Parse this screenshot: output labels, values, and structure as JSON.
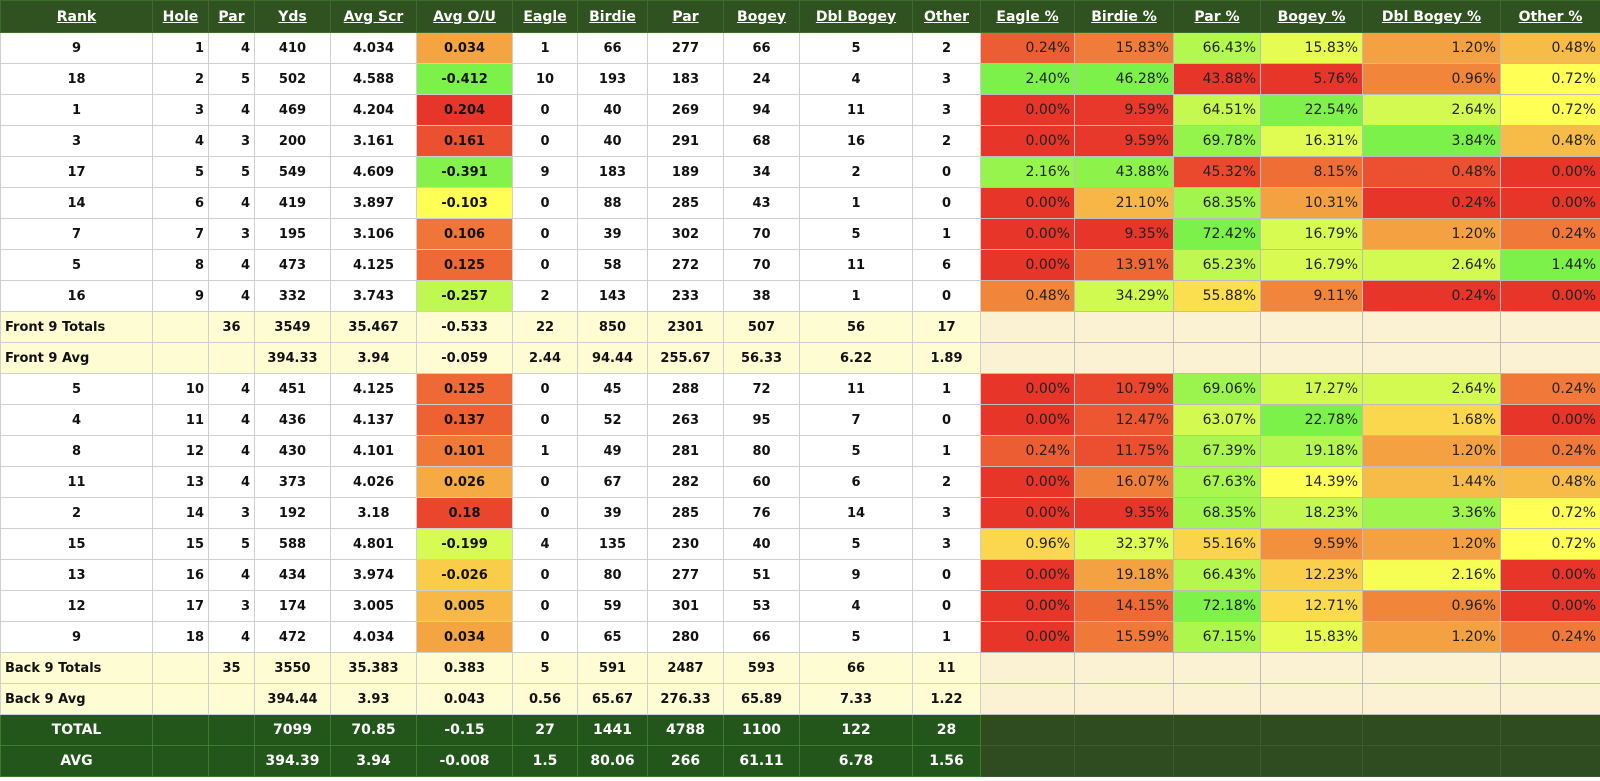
{
  "columns": [
    "Rank",
    "Hole",
    "Par",
    "Yds",
    "Avg Scr",
    "Avg O/U",
    "Eagle",
    "Birdie",
    "Par",
    "Bogey",
    "Dbl Bogey",
    "Other",
    "Eagle %",
    "Birdie %",
    "Par %",
    "Bogey %",
    "Dbl Bogey %",
    "Other %"
  ],
  "front_rows": [
    {
      "rank": "9",
      "hole": "1",
      "par": "4",
      "yds": "410",
      "avg": "4.034",
      "ou": "0.034",
      "eagle": "1",
      "birdie": "66",
      "parc": "277",
      "bogey": "66",
      "dbl": "5",
      "other": "2",
      "pcts": [
        "0.24%",
        "15.83%",
        "66.43%",
        "15.83%",
        "1.20%",
        "0.48%"
      ]
    },
    {
      "rank": "18",
      "hole": "2",
      "par": "5",
      "yds": "502",
      "avg": "4.588",
      "ou": "-0.412",
      "eagle": "10",
      "birdie": "193",
      "parc": "183",
      "bogey": "24",
      "dbl": "4",
      "other": "3",
      "pcts": [
        "2.40%",
        "46.28%",
        "43.88%",
        "5.76%",
        "0.96%",
        "0.72%"
      ]
    },
    {
      "rank": "1",
      "hole": "3",
      "par": "4",
      "yds": "469",
      "avg": "4.204",
      "ou": "0.204",
      "eagle": "0",
      "birdie": "40",
      "parc": "269",
      "bogey": "94",
      "dbl": "11",
      "other": "3",
      "pcts": [
        "0.00%",
        "9.59%",
        "64.51%",
        "22.54%",
        "2.64%",
        "0.72%"
      ]
    },
    {
      "rank": "3",
      "hole": "4",
      "par": "3",
      "yds": "200",
      "avg": "3.161",
      "ou": "0.161",
      "eagle": "0",
      "birdie": "40",
      "parc": "291",
      "bogey": "68",
      "dbl": "16",
      "other": "2",
      "pcts": [
        "0.00%",
        "9.59%",
        "69.78%",
        "16.31%",
        "3.84%",
        "0.48%"
      ]
    },
    {
      "rank": "17",
      "hole": "5",
      "par": "5",
      "yds": "549",
      "avg": "4.609",
      "ou": "-0.391",
      "eagle": "9",
      "birdie": "183",
      "parc": "189",
      "bogey": "34",
      "dbl": "2",
      "other": "0",
      "pcts": [
        "2.16%",
        "43.88%",
        "45.32%",
        "8.15%",
        "0.48%",
        "0.00%"
      ]
    },
    {
      "rank": "14",
      "hole": "6",
      "par": "4",
      "yds": "419",
      "avg": "3.897",
      "ou": "-0.103",
      "eagle": "0",
      "birdie": "88",
      "parc": "285",
      "bogey": "43",
      "dbl": "1",
      "other": "0",
      "pcts": [
        "0.00%",
        "21.10%",
        "68.35%",
        "10.31%",
        "0.24%",
        "0.00%"
      ]
    },
    {
      "rank": "7",
      "hole": "7",
      "par": "3",
      "yds": "195",
      "avg": "3.106",
      "ou": "0.106",
      "eagle": "0",
      "birdie": "39",
      "parc": "302",
      "bogey": "70",
      "dbl": "5",
      "other": "1",
      "pcts": [
        "0.00%",
        "9.35%",
        "72.42%",
        "16.79%",
        "1.20%",
        "0.24%"
      ]
    },
    {
      "rank": "5",
      "hole": "8",
      "par": "4",
      "yds": "473",
      "avg": "4.125",
      "ou": "0.125",
      "eagle": "0",
      "birdie": "58",
      "parc": "272",
      "bogey": "70",
      "dbl": "11",
      "other": "6",
      "pcts": [
        "0.00%",
        "13.91%",
        "65.23%",
        "16.79%",
        "2.64%",
        "1.44%"
      ]
    },
    {
      "rank": "16",
      "hole": "9",
      "par": "4",
      "yds": "332",
      "avg": "3.743",
      "ou": "-0.257",
      "eagle": "2",
      "birdie": "143",
      "parc": "233",
      "bogey": "38",
      "dbl": "1",
      "other": "0",
      "pcts": [
        "0.48%",
        "34.29%",
        "55.88%",
        "9.11%",
        "0.24%",
        "0.00%"
      ]
    }
  ],
  "front_totals": {
    "label": "Front 9 Totals",
    "par": "36",
    "yds": "3549",
    "avg": "35.467",
    "ou": "-0.533",
    "eagle": "22",
    "birdie": "850",
    "parc": "2301",
    "bogey": "507",
    "dbl": "56",
    "other": "17"
  },
  "front_avg": {
    "label": "Front 9 Avg",
    "par": "",
    "yds": "394.33",
    "avg": "3.94",
    "ou": "-0.059",
    "eagle": "2.44",
    "birdie": "94.44",
    "parc": "255.67",
    "bogey": "56.33",
    "dbl": "6.22",
    "other": "1.89"
  },
  "back_rows": [
    {
      "rank": "5",
      "hole": "10",
      "par": "4",
      "yds": "451",
      "avg": "4.125",
      "ou": "0.125",
      "eagle": "0",
      "birdie": "45",
      "parc": "288",
      "bogey": "72",
      "dbl": "11",
      "other": "1",
      "pcts": [
        "0.00%",
        "10.79%",
        "69.06%",
        "17.27%",
        "2.64%",
        "0.24%"
      ]
    },
    {
      "rank": "4",
      "hole": "11",
      "par": "4",
      "yds": "436",
      "avg": "4.137",
      "ou": "0.137",
      "eagle": "0",
      "birdie": "52",
      "parc": "263",
      "bogey": "95",
      "dbl": "7",
      "other": "0",
      "pcts": [
        "0.00%",
        "12.47%",
        "63.07%",
        "22.78%",
        "1.68%",
        "0.00%"
      ]
    },
    {
      "rank": "8",
      "hole": "12",
      "par": "4",
      "yds": "430",
      "avg": "4.101",
      "ou": "0.101",
      "eagle": "1",
      "birdie": "49",
      "parc": "281",
      "bogey": "80",
      "dbl": "5",
      "other": "1",
      "pcts": [
        "0.24%",
        "11.75%",
        "67.39%",
        "19.18%",
        "1.20%",
        "0.24%"
      ]
    },
    {
      "rank": "11",
      "hole": "13",
      "par": "4",
      "yds": "373",
      "avg": "4.026",
      "ou": "0.026",
      "eagle": "0",
      "birdie": "67",
      "parc": "282",
      "bogey": "60",
      "dbl": "6",
      "other": "2",
      "pcts": [
        "0.00%",
        "16.07%",
        "67.63%",
        "14.39%",
        "1.44%",
        "0.48%"
      ]
    },
    {
      "rank": "2",
      "hole": "14",
      "par": "3",
      "yds": "192",
      "avg": "3.18",
      "ou": "0.18",
      "eagle": "0",
      "birdie": "39",
      "parc": "285",
      "bogey": "76",
      "dbl": "14",
      "other": "3",
      "pcts": [
        "0.00%",
        "9.35%",
        "68.35%",
        "18.23%",
        "3.36%",
        "0.72%"
      ]
    },
    {
      "rank": "15",
      "hole": "15",
      "par": "5",
      "yds": "588",
      "avg": "4.801",
      "ou": "-0.199",
      "eagle": "4",
      "birdie": "135",
      "parc": "230",
      "bogey": "40",
      "dbl": "5",
      "other": "3",
      "pcts": [
        "0.96%",
        "32.37%",
        "55.16%",
        "9.59%",
        "1.20%",
        "0.72%"
      ]
    },
    {
      "rank": "13",
      "hole": "16",
      "par": "4",
      "yds": "434",
      "avg": "3.974",
      "ou": "-0.026",
      "eagle": "0",
      "birdie": "80",
      "parc": "277",
      "bogey": "51",
      "dbl": "9",
      "other": "0",
      "pcts": [
        "0.00%",
        "19.18%",
        "66.43%",
        "12.23%",
        "2.16%",
        "0.00%"
      ]
    },
    {
      "rank": "12",
      "hole": "17",
      "par": "3",
      "yds": "174",
      "avg": "3.005",
      "ou": "0.005",
      "eagle": "0",
      "birdie": "59",
      "parc": "301",
      "bogey": "53",
      "dbl": "4",
      "other": "0",
      "pcts": [
        "0.00%",
        "14.15%",
        "72.18%",
        "12.71%",
        "0.96%",
        "0.00%"
      ]
    },
    {
      "rank": "9",
      "hole": "18",
      "par": "4",
      "yds": "472",
      "avg": "4.034",
      "ou": "0.034",
      "eagle": "0",
      "birdie": "65",
      "parc": "280",
      "bogey": "66",
      "dbl": "5",
      "other": "1",
      "pcts": [
        "0.00%",
        "15.59%",
        "67.15%",
        "15.83%",
        "1.20%",
        "0.24%"
      ]
    }
  ],
  "back_totals": {
    "label": "Back 9 Totals",
    "par": "35",
    "yds": "3550",
    "avg": "35.383",
    "ou": "0.383",
    "eagle": "5",
    "birdie": "591",
    "parc": "2487",
    "bogey": "593",
    "dbl": "66",
    "other": "11"
  },
  "back_avg": {
    "label": "Back 9 Avg",
    "par": "",
    "yds": "394.44",
    "avg": "3.93",
    "ou": "0.043",
    "eagle": "0.56",
    "birdie": "65.67",
    "parc": "276.33",
    "bogey": "65.89",
    "dbl": "7.33",
    "other": "1.22"
  },
  "total": {
    "label": "TOTAL",
    "par": "",
    "yds": "7099",
    "avg": "70.85",
    "ou": "-0.15",
    "eagle": "27",
    "birdie": "1441",
    "parc": "4788",
    "bogey": "1100",
    "dbl": "122",
    "other": "28"
  },
  "avg": {
    "label": "AVG",
    "par": "",
    "yds": "394.39",
    "avg": "3.94",
    "ou": "-0.008",
    "eagle": "1.5",
    "birdie": "80.06",
    "parc": "266",
    "bogey": "61.11",
    "dbl": "6.78",
    "other": "1.56"
  },
  "colors": {
    "header_bg": "#2f5220",
    "total_bg": "#22561a",
    "subtotal_bg": "#fdfcd3",
    "scale_low": "#e8352a",
    "scale_mid": "#ffff55",
    "scale_high": "#7cf14a"
  }
}
